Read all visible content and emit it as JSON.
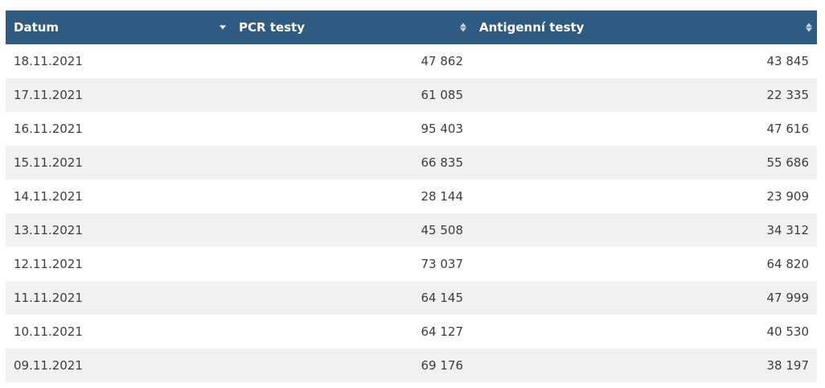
{
  "table": {
    "headers": [
      {
        "label": "Datum",
        "sort": "descending"
      },
      {
        "label": "PCR testy",
        "sort": "none"
      },
      {
        "label": "Antigenní testy",
        "sort": "none"
      }
    ],
    "rows": [
      {
        "date": "18.11.2021",
        "pcr": "47 862",
        "antigen": "43 845"
      },
      {
        "date": "17.11.2021",
        "pcr": "61 085",
        "antigen": "22 335"
      },
      {
        "date": "16.11.2021",
        "pcr": "95 403",
        "antigen": "47 616"
      },
      {
        "date": "15.11.2021",
        "pcr": "66 835",
        "antigen": "55 686"
      },
      {
        "date": "14.11.2021",
        "pcr": "28 144",
        "antigen": "23 909"
      },
      {
        "date": "13.11.2021",
        "pcr": "45 508",
        "antigen": "34 312"
      },
      {
        "date": "12.11.2021",
        "pcr": "73 037",
        "antigen": "64 820"
      },
      {
        "date": "11.11.2021",
        "pcr": "64 145",
        "antigen": "47 999"
      },
      {
        "date": "10.11.2021",
        "pcr": "64 127",
        "antigen": "40 530"
      },
      {
        "date": "09.11.2021",
        "pcr": "69 176",
        "antigen": "38 197"
      }
    ]
  },
  "colors": {
    "header_bg": "#2f5a82",
    "row_alt_bg": "#f1f1f1",
    "text": "#3d3d3d"
  },
  "icons": {
    "sort_active": "sort-descending-icon",
    "sort_inactive": "sort-both-icon"
  }
}
